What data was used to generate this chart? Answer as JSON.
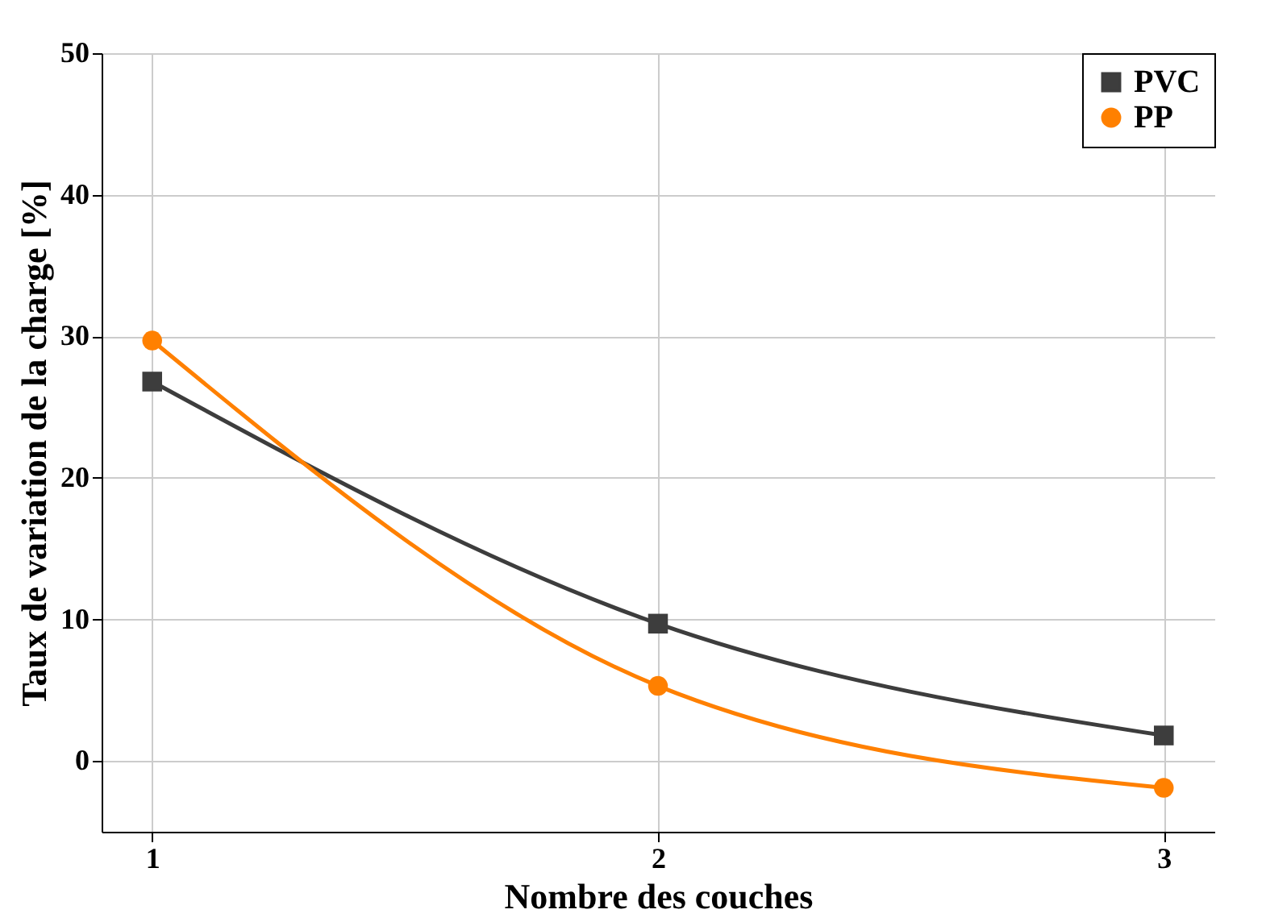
{
  "chart_data": {
    "type": "line",
    "xlabel": "Nombre des couches",
    "ylabel": "Taux de variation de la charge [%]",
    "x": [
      1,
      2,
      3
    ],
    "series": [
      {
        "name": "PVC",
        "color": "#3d3d3d",
        "marker": "square",
        "values": [
          26.8,
          9.7,
          1.8
        ]
      },
      {
        "name": "PP",
        "color": "#ff8000",
        "marker": "circle",
        "values": [
          29.7,
          5.3,
          -1.9
        ]
      }
    ],
    "xlim": [
      0.9,
      3.1
    ],
    "xticks": [
      1,
      2,
      3
    ],
    "ylim": [
      -5,
      50
    ],
    "yticks": [
      0,
      10,
      20,
      30,
      40,
      50
    ],
    "grid": true,
    "legend": "top right",
    "line_style": "solid"
  }
}
